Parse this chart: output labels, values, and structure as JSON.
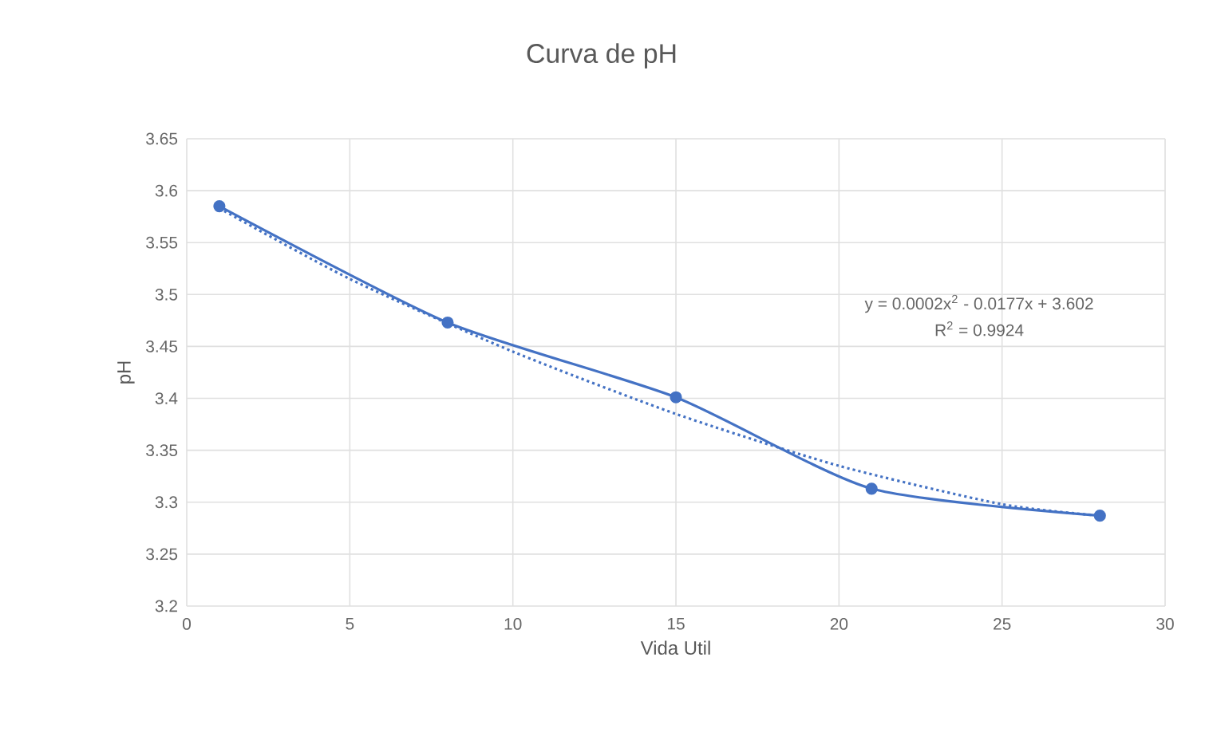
{
  "chart_data": {
    "type": "line",
    "title": "Curva de pH",
    "xlabel": "Vida Util",
    "ylabel": "pH",
    "xlim": [
      0,
      30
    ],
    "xticks": [
      0,
      5,
      10,
      15,
      20,
      25,
      30
    ],
    "ylim": [
      3.2,
      3.65
    ],
    "yticks": [
      3.2,
      3.25,
      3.3,
      3.35,
      3.4,
      3.45,
      3.5,
      3.55,
      3.6,
      3.65
    ],
    "grid": true,
    "series": [
      {
        "color": "#4472c4",
        "marker": "circle",
        "line_style": "solid",
        "x": [
          1,
          8,
          15,
          21,
          28
        ],
        "values": [
          3.585,
          3.473,
          3.401,
          3.313,
          3.287
        ]
      },
      {
        "color": "#4472c4",
        "marker": "none",
        "line_style": "dotted",
        "x": [
          1,
          5,
          10,
          15,
          20,
          25,
          28
        ],
        "values": [
          3.583,
          3.515,
          3.445,
          3.385,
          3.335,
          3.298,
          3.287
        ]
      }
    ],
    "annotations": [
      "y = 0.0002x$^{2}$ - 0.0177x + 3.602",
      "R$^{2}$ = 0.9924"
    ]
  }
}
